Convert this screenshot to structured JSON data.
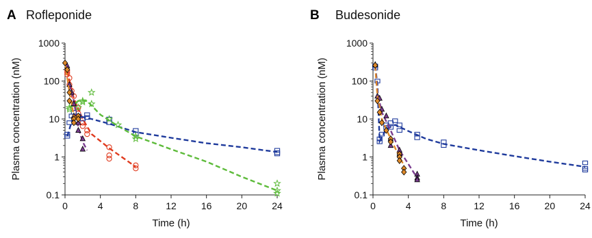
{
  "chart_data": [
    {
      "type": "scatter",
      "panel_letter": "A",
      "title": "Rofleponide",
      "xlabel": "Time (h)",
      "ylabel": "Plasma concentration (nM)",
      "xscale": "linear",
      "yscale": "log",
      "xlim": [
        0,
        24
      ],
      "ylim": [
        0.1,
        1000
      ],
      "xticks": [
        0,
        4,
        8,
        12,
        16,
        20,
        24
      ],
      "yticks": [
        0.1,
        1,
        10,
        100,
        1000
      ],
      "ytick_labels": [
        "0.1",
        "1",
        "10",
        "100",
        "1000"
      ],
      "grid": false,
      "legend": false,
      "series": [
        {
          "color": "#e03a1e",
          "marker": "open-circle",
          "points": [
            [
              0.25,
              190
            ],
            [
              0.25,
              170
            ],
            [
              0.25,
              150
            ],
            [
              0.5,
              120
            ],
            [
              0.5,
              80
            ],
            [
              0.75,
              55
            ],
            [
              1,
              40
            ],
            [
              1,
              25
            ],
            [
              1.5,
              20
            ],
            [
              1.5,
              14
            ],
            [
              2,
              8
            ],
            [
              2,
              6.5
            ],
            [
              2.5,
              5
            ],
            [
              2.5,
              4
            ],
            [
              5,
              1.8
            ],
            [
              5,
              1.1
            ],
            [
              5,
              0.9
            ],
            [
              8,
              0.6
            ],
            [
              8,
              0.5
            ]
          ],
          "fit": [
            [
              0.25,
              180
            ],
            [
              1,
              35
            ],
            [
              2,
              10
            ],
            [
              3,
              4
            ],
            [
              5,
              1.7
            ],
            [
              8,
              0.55
            ]
          ]
        },
        {
          "color": "#1e3a9c",
          "marker": "open-square",
          "points": [
            [
              0.25,
              3.5
            ],
            [
              0.25,
              4
            ],
            [
              0.5,
              8
            ],
            [
              0.75,
              12
            ],
            [
              1,
              15
            ],
            [
              1.5,
              12
            ],
            [
              2,
              10
            ],
            [
              2.5,
              13
            ],
            [
              2.5,
              11
            ],
            [
              5,
              10
            ],
            [
              5,
              8
            ],
            [
              8,
              5
            ],
            [
              8,
              4
            ],
            [
              24,
              1.5
            ],
            [
              24,
              1.3
            ],
            [
              24,
              1.2
            ]
          ],
          "fit": [
            [
              0.25,
              3.5
            ],
            [
              1,
              13
            ],
            [
              1.5,
              12
            ],
            [
              3,
              10
            ],
            [
              5,
              7.5
            ],
            [
              8,
              4.5
            ],
            [
              12,
              3.2
            ],
            [
              16,
              2.3
            ],
            [
              20,
              1.8
            ],
            [
              24,
              1.35
            ]
          ]
        },
        {
          "color": "#5dbb3a",
          "marker": "open-star",
          "points": [
            [
              0.5,
              20
            ],
            [
              0.5,
              18
            ],
            [
              1,
              25
            ],
            [
              1.5,
              20
            ],
            [
              2,
              28
            ],
            [
              2,
              30
            ],
            [
              3,
              50
            ],
            [
              3,
              25
            ],
            [
              5,
              10
            ],
            [
              6,
              7
            ],
            [
              8,
              3.5
            ],
            [
              8,
              3
            ],
            [
              24,
              0.2
            ],
            [
              24,
              0.13
            ],
            [
              24,
              0.11
            ]
          ],
          "fit": [
            [
              0.5,
              20
            ],
            [
              1.5,
              30
            ],
            [
              2.5,
              30
            ],
            [
              4,
              13
            ],
            [
              6,
              6.5
            ],
            [
              8,
              3.5
            ],
            [
              12,
              1.6
            ],
            [
              16,
              0.75
            ],
            [
              20,
              0.3
            ],
            [
              24,
              0.13
            ]
          ]
        },
        {
          "color": "#7a3d8f",
          "marker": "filled-triangle",
          "points": [
            [
              0.25,
              250
            ],
            [
              0.5,
              80
            ],
            [
              0.75,
              50
            ],
            [
              1,
              25
            ],
            [
              1,
              12
            ],
            [
              1.5,
              8
            ],
            [
              1.5,
              5
            ],
            [
              2,
              3
            ],
            [
              2,
              1.6
            ]
          ],
          "fit": [
            [
              0.5,
              80
            ],
            [
              1,
              30
            ],
            [
              1.5,
              6
            ],
            [
              2,
              2.5
            ],
            [
              2.5,
              1.5
            ]
          ]
        },
        {
          "color": "#e08a2a",
          "marker": "filled-diamond",
          "points": [
            [
              0,
              300
            ],
            [
              0.25,
              200
            ],
            [
              0.5,
              50
            ],
            [
              0.5,
              30
            ],
            [
              1,
              10
            ],
            [
              1,
              8
            ],
            [
              1.5,
              12
            ],
            [
              1.5,
              10
            ]
          ],
          "fit": [
            [
              0,
              300
            ],
            [
              0.5,
              50
            ],
            [
              1,
              12
            ],
            [
              1.5,
              10
            ]
          ]
        }
      ]
    },
    {
      "type": "scatter",
      "panel_letter": "B",
      "title": "Budesonide",
      "xlabel": "Time (h)",
      "ylabel": "Plasma concentration (nM)",
      "xscale": "linear",
      "yscale": "log",
      "xlim": [
        0,
        24
      ],
      "ylim": [
        0.1,
        1000
      ],
      "xticks": [
        0,
        4,
        8,
        12,
        16,
        20,
        24
      ],
      "yticks": [
        0.1,
        1,
        10,
        100,
        1000
      ],
      "ytick_labels": [
        "0.1",
        "1",
        "10",
        "100",
        "1000"
      ],
      "grid": false,
      "legend": false,
      "series": [
        {
          "color": "#1e3a9c",
          "marker": "open-square",
          "points": [
            [
              0.25,
              250
            ],
            [
              0.25,
              220
            ],
            [
              0.5,
              100
            ],
            [
              0.75,
              3
            ],
            [
              0.75,
              2.5
            ],
            [
              1,
              4
            ],
            [
              1.5,
              7
            ],
            [
              1.5,
              6
            ],
            [
              2,
              8
            ],
            [
              2,
              6
            ],
            [
              2.5,
              9
            ],
            [
              3,
              7
            ],
            [
              3,
              5
            ],
            [
              5,
              4
            ],
            [
              5,
              3.2
            ],
            [
              8,
              2.5
            ],
            [
              8,
              2
            ],
            [
              24,
              0.7
            ],
            [
              24,
              0.5
            ],
            [
              24,
              0.45
            ]
          ],
          "fit": [
            [
              0.25,
              250
            ],
            [
              0.5,
              80
            ],
            [
              0.75,
              2.6
            ],
            [
              1.5,
              5.5
            ],
            [
              2.5,
              7
            ],
            [
              4,
              4.8
            ],
            [
              6,
              3
            ],
            [
              8,
              2.2
            ],
            [
              12,
              1.5
            ],
            [
              16,
              1.05
            ],
            [
              20,
              0.75
            ],
            [
              24,
              0.55
            ]
          ]
        },
        {
          "color": "#7a3d8f",
          "marker": "filled-triangle",
          "points": [
            [
              0.25,
              270
            ],
            [
              0.5,
              40
            ],
            [
              0.75,
              35
            ],
            [
              1,
              18
            ],
            [
              1.5,
              12
            ],
            [
              2,
              3
            ],
            [
              2,
              2
            ],
            [
              3,
              1.5
            ],
            [
              3,
              1.2
            ],
            [
              5,
              0.35
            ],
            [
              5,
              0.28
            ],
            [
              5,
              0.25
            ]
          ],
          "fit": [
            [
              0.25,
              250
            ],
            [
              0.5,
              50
            ],
            [
              1,
              15
            ],
            [
              2,
              5
            ],
            [
              3,
              1.5
            ],
            [
              5,
              0.28
            ]
          ]
        },
        {
          "color": "#e08a2a",
          "marker": "filled-diamond",
          "points": [
            [
              0.25,
              260
            ],
            [
              0.5,
              30
            ],
            [
              0.75,
              15
            ],
            [
              1,
              8
            ],
            [
              1.5,
              5
            ],
            [
              2,
              3
            ],
            [
              2,
              2.5
            ],
            [
              3,
              1.2
            ],
            [
              3,
              1
            ],
            [
              3,
              0.8
            ],
            [
              3.5,
              0.5
            ],
            [
              3.5,
              0.4
            ]
          ],
          "fit": [
            [
              0.25,
              250
            ],
            [
              0.5,
              40
            ],
            [
              1,
              10
            ],
            [
              2,
              3
            ],
            [
              3,
              1
            ],
            [
              3.5,
              0.6
            ]
          ]
        }
      ]
    }
  ]
}
